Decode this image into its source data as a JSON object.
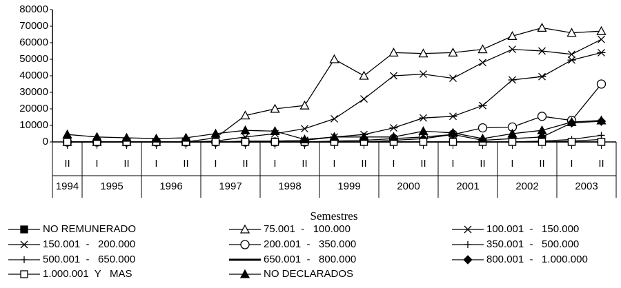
{
  "chart_data": {
    "type": "line",
    "x_label": "Semestres",
    "categories": [
      "II",
      "I",
      "II",
      "I",
      "II",
      "I",
      "II",
      "I",
      "II",
      "I",
      "II",
      "I",
      "II",
      "I",
      "II",
      "I",
      "II",
      "I",
      "II"
    ],
    "years": [
      "1994",
      "1995",
      "1996",
      "1997",
      "1998",
      "1999",
      "2000",
      "2001",
      "2002",
      "2003"
    ],
    "ylim": [
      0,
      80000
    ],
    "yticks": [
      0,
      10000,
      20000,
      30000,
      40000,
      50000,
      60000,
      70000,
      80000
    ],
    "series": [
      {
        "name": "NO REMUNERADO",
        "color": "#000000",
        "marker": "square-filled",
        "values": [
          0,
          0,
          0,
          0,
          0,
          0,
          0,
          0,
          0,
          0,
          0,
          0,
          0,
          0,
          0,
          0,
          0,
          0,
          0
        ]
      },
      {
        "name": "75.001  -   100.000",
        "color": "#000000",
        "marker": "triangle-open",
        "values": [
          0,
          0,
          0,
          0,
          0,
          2500,
          16000,
          20000,
          22000,
          50000,
          40000,
          54000,
          53500,
          54000,
          56000,
          64000,
          69000,
          66000,
          67000
        ]
      },
      {
        "name": "100.001  -   150.000",
        "color": "#000000",
        "marker": "x",
        "values": [
          0,
          0,
          0,
          0,
          0,
          500,
          3000,
          5000,
          8000,
          14000,
          26000,
          40000,
          41000,
          38500,
          48000,
          56000,
          55000,
          53000,
          62000
        ]
      },
      {
        "name": "150.001  -   200.000",
        "color": "#000000",
        "marker": "star",
        "values": [
          0,
          0,
          0,
          0,
          0,
          0,
          500,
          500,
          1000,
          3000,
          4500,
          8500,
          14500,
          15500,
          22000,
          37500,
          39500,
          49500,
          54000
        ]
      },
      {
        "name": "200.001  -   350.000",
        "color": "#000000",
        "marker": "circle-open",
        "values": [
          0,
          0,
          0,
          0,
          0,
          0,
          0,
          0,
          0,
          500,
          1000,
          2000,
          3000,
          4500,
          8500,
          9000,
          15500,
          13000,
          35000
        ]
      },
      {
        "name": "350.001  -   500.000",
        "color": "#000000",
        "marker": "plus",
        "values": [
          0,
          0,
          0,
          0,
          0,
          0,
          0,
          0,
          0,
          0,
          0,
          0,
          0,
          0,
          0,
          0,
          500,
          1500,
          4000
        ]
      },
      {
        "name": "500.001  -   650.000",
        "color": "#000000",
        "marker": "plus",
        "values": [
          0,
          0,
          0,
          0,
          0,
          0,
          0,
          0,
          0,
          0,
          0,
          0,
          0,
          0,
          0,
          0,
          0,
          500,
          1500
        ]
      },
      {
        "name": "650.001  -   800.000",
        "color": "#000000",
        "marker": "none",
        "values": [
          0,
          0,
          0,
          0,
          0,
          0,
          0,
          0,
          0,
          0,
          0,
          0,
          0,
          0,
          0,
          0,
          0,
          0,
          0
        ]
      },
      {
        "name": "800.001  -   1.000.000",
        "color": "#000000",
        "marker": "diamond-filled",
        "values": [
          0,
          0,
          0,
          0,
          0,
          0,
          0,
          0,
          0,
          0,
          0,
          1000,
          2000,
          4500,
          1000,
          2000,
          3000,
          11500,
          12500
        ]
      },
      {
        "name": "1.000.001  Y   MAS",
        "color": "#000000",
        "marker": "square-open",
        "values": [
          0,
          0,
          0,
          0,
          0,
          0,
          0,
          0,
          0,
          0,
          0,
          0,
          0,
          0,
          0,
          0,
          0,
          0,
          0
        ]
      },
      {
        "name": "NO DECLARADOS",
        "color": "#000000",
        "marker": "triangle-filled",
        "values": [
          4500,
          3000,
          2500,
          2000,
          2500,
          5000,
          7000,
          6500,
          1500,
          3000,
          3000,
          3000,
          6500,
          5500,
          2000,
          5000,
          7000,
          12000,
          13000
        ]
      }
    ]
  }
}
